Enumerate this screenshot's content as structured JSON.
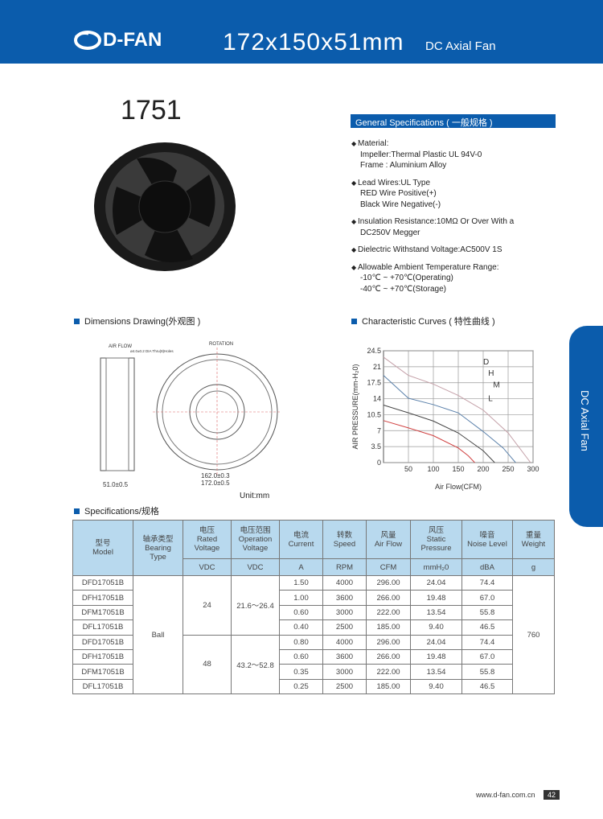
{
  "header": {
    "brand": "D-FAN",
    "size": "172x150x51mm",
    "subtitle": "DC Axial Fan"
  },
  "model": "1751",
  "general": {
    "title": "General Specifications ( 一般规格 )",
    "items": [
      {
        "head": "Material:",
        "lines": [
          "Impeller:Thermal Plastic UL 94V-0",
          "Frame  : Aluminium Alloy"
        ]
      },
      {
        "head": "Lead Wires:UL Type",
        "lines": [
          "RED Wire Positive(+)",
          "Black Wire Negative(-)"
        ]
      },
      {
        "head": "Insulation Resistance:10MΩ Or Over With a",
        "lines": [
          "DC250V Megger"
        ]
      },
      {
        "head": "Dielectric Withstand Voltage:AC500V 1S",
        "lines": []
      },
      {
        "head": "Allowable Ambient Temperature Range:",
        "lines": [
          "-10℃ ~ +70℃(Operating)",
          "-40℃ ~ +70℃(Storage)"
        ]
      }
    ]
  },
  "dimensions": {
    "title": "Dimensions Drawing(外观图 )",
    "airflow": "AIR FLOW",
    "rotation": "ROTATION",
    "holes": "ø4.0±0.2 DIA Thru(8)Holes",
    "depth": "51.0±0.5",
    "hole_span": "162.0±0.3",
    "width": "172.0±0.5",
    "unit": "Unit:mm"
  },
  "curves": {
    "title": "Characteristic Curves ( 特性曲线 )"
  },
  "chart_data": {
    "type": "line",
    "xlabel": "Air Flow(CFM)",
    "ylabel": "AIR PRESSURE(mm-H₂0)",
    "xlim": [
      0,
      300
    ],
    "ylim": [
      0,
      24.5
    ],
    "xticks": [
      50,
      100,
      150,
      200,
      250,
      300
    ],
    "yticks": [
      0.0,
      3.5,
      7.0,
      10.5,
      14.0,
      17.5,
      21.0,
      24.5
    ],
    "grid": true,
    "series": [
      {
        "name": "D",
        "color": "#c4a0a8",
        "x": [
          0,
          50,
          100,
          150,
          200,
          250,
          295
        ],
        "y": [
          23.1,
          19.1,
          17.2,
          14.7,
          11.5,
          6.5,
          0
        ]
      },
      {
        "name": "H",
        "color": "#5a80aa",
        "x": [
          0,
          50,
          100,
          150,
          200,
          240,
          265
        ],
        "y": [
          19.1,
          14.1,
          12.7,
          10.9,
          6.8,
          3.2,
          0
        ]
      },
      {
        "name": "M",
        "color": "#444444",
        "x": [
          0,
          50,
          100,
          150,
          200,
          223
        ],
        "y": [
          12.6,
          10.9,
          9.1,
          6.5,
          2.6,
          0
        ]
      },
      {
        "name": "L",
        "color": "#d04040",
        "x": [
          0,
          50,
          100,
          150,
          170,
          183
        ],
        "y": [
          9.2,
          7.6,
          5.9,
          3.2,
          1.5,
          0
        ]
      }
    ]
  },
  "table": {
    "title": "Specifications/规格",
    "headers": [
      [
        "型号",
        "Model"
      ],
      [
        "轴承类型",
        "Bearing",
        "Type"
      ],
      [
        "电压",
        "Rated",
        "Voltage"
      ],
      [
        "电压范围",
        "Operation",
        "Voltage"
      ],
      [
        "电流",
        "Current"
      ],
      [
        "转数",
        "Speed"
      ],
      [
        "风量",
        "Air Flow"
      ],
      [
        "风压",
        "Static",
        "Pressure"
      ],
      [
        "噪音",
        "Noise Level"
      ],
      [
        "重量",
        "Weight"
      ]
    ],
    "units": [
      "VDC",
      "VDC",
      "A",
      "RPM",
      "CFM",
      "mmH₂0",
      "dBA",
      "g"
    ],
    "bearing": "Ball",
    "weight": "760",
    "groups": [
      {
        "voltage": "24",
        "range": "21.6～26.4"
      },
      {
        "voltage": "48",
        "range": "43.2～52.8"
      }
    ],
    "rows": [
      [
        "DFD17051B",
        "1.50",
        "4000",
        "296.00",
        "24.04",
        "74.4"
      ],
      [
        "DFH17051B",
        "1.00",
        "3600",
        "266.00",
        "19.48",
        "67.0"
      ],
      [
        "DFM17051B",
        "0.60",
        "3000",
        "222.00",
        "13.54",
        "55.8"
      ],
      [
        "DFL17051B",
        "0.40",
        "2500",
        "185.00",
        "9.40",
        "46.5"
      ],
      [
        "DFD17051B",
        "0.80",
        "4000",
        "296.00",
        "24.04",
        "74.4"
      ],
      [
        "DFH17051B",
        "0.60",
        "3600",
        "266.00",
        "19.48",
        "67.0"
      ],
      [
        "DFM17051B",
        "0.35",
        "3000",
        "222.00",
        "13.54",
        "55.8"
      ],
      [
        "DFL17051B",
        "0.25",
        "2500",
        "185.00",
        "9.40",
        "46.5"
      ]
    ]
  },
  "side_tab": "DC Axial Fan",
  "footer": {
    "url": "www.d-fan.com.cn",
    "page": "42"
  }
}
